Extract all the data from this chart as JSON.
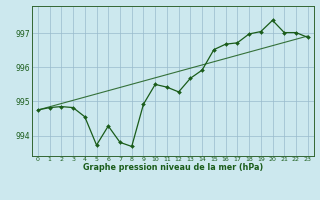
{
  "title": "Graphe pression niveau de la mer (hPa)",
  "bg_color": "#cce8ee",
  "grid_color": "#99bbcc",
  "line_color": "#1a5c1a",
  "spine_color": "#336633",
  "xlim": [
    -0.5,
    23.5
  ],
  "ylim": [
    993.4,
    997.8
  ],
  "yticks": [
    994,
    995,
    996,
    997
  ],
  "xtick_labels": [
    "0",
    "1",
    "2",
    "3",
    "4",
    "5",
    "6",
    "7",
    "8",
    "9",
    "10",
    "11",
    "12",
    "13",
    "14",
    "15",
    "16",
    "17",
    "18",
    "19",
    "20",
    "21",
    "22",
    "23"
  ],
  "data_x": [
    0,
    1,
    2,
    3,
    4,
    5,
    6,
    7,
    8,
    9,
    10,
    11,
    12,
    13,
    14,
    15,
    16,
    17,
    18,
    19,
    20,
    21,
    22,
    23
  ],
  "data_y": [
    994.75,
    994.82,
    994.85,
    994.82,
    994.55,
    993.72,
    994.28,
    993.8,
    993.68,
    994.92,
    995.5,
    995.42,
    995.28,
    995.68,
    995.92,
    996.52,
    996.68,
    996.72,
    996.98,
    997.05,
    997.38,
    997.02,
    997.02,
    996.88
  ],
  "trend_x": [
    0,
    23
  ],
  "trend_y": [
    994.75,
    996.92
  ]
}
